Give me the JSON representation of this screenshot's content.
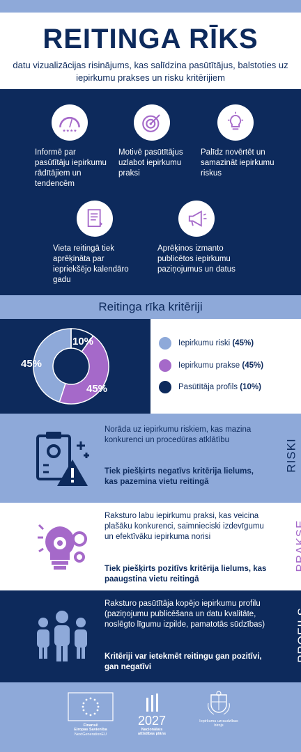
{
  "header": {
    "title": "REITINGA RĪKS",
    "subtitle": "datu vizualizācijas risinājums, kas salīdzina pasūtītājus, balstoties uz iepirkumu prakses un risku kritērijiem"
  },
  "features": [
    {
      "icon": "gauge-stars-icon",
      "text": "Informē par pasūtītāju iepirkumu rādītājiem un tendencēm"
    },
    {
      "icon": "target-arrow-icon",
      "text": "Motivē pasūtītājus uzlabot iepirkumu praksi"
    },
    {
      "icon": "lightbulb-icon",
      "text": "Palīdz novērtēt un samazināt iepirkumu riskus"
    },
    {
      "icon": "document-icon",
      "text": "Vieta reitingā tiek aprēķināta par iepriekšējo kalendāro gadu"
    },
    {
      "icon": "megaphone-icon",
      "text": "Aprēķinos izmanto publicētos iepirkumu paziņojumus un datus"
    }
  ],
  "criteria_title": "Reitinga rīka kritēriji",
  "chart_data": {
    "type": "pie",
    "categories": [
      "Iepirkumu riski",
      "Iepirkumu prakse",
      "Pasūtītāja profils"
    ],
    "values": [
      45,
      45,
      10
    ],
    "value_labels": [
      "45%",
      "45%",
      "10%"
    ],
    "colors": [
      "#8ea9d9",
      "#a569c9",
      "#0d2a5c"
    ],
    "legend": [
      {
        "name": "Iepirkumu riski",
        "value": "(45%)"
      },
      {
        "name": "Iepirkumu prakse",
        "value": "(45%)"
      },
      {
        "name": "Pasūtītāja profils",
        "value": "(10%)"
      }
    ]
  },
  "sections": [
    {
      "label": "RISKI",
      "text": "Norāda uz iepirkumu riskiem, kas mazina konkurenci un procedūras atklātību",
      "bold": "Tiek piešķirts negatīvs kritērija lielums, kas pazemina vietu reitingā",
      "bg": "#8ea9d9",
      "fg": "#0d2a5c",
      "icon": "clipboard-warning-icon"
    },
    {
      "label": "PRAKSE",
      "text": "Raksturo labu iepirkumu praksi, kas veicina plašāku konkurenci, saimnieciski izdevīgumu un efektīvāku iepirkuma norisi",
      "bold": "Tiek piešķirts pozitīvs kritērija lielums, kas paaugstina vietu reitingā",
      "bg": "#ffffff",
      "fg": "#0d2a5c",
      "icon": "bulb-gears-icon"
    },
    {
      "label": "PROFILS",
      "text": "Raksturo pasūtītāja kopējo iepirkumu profilu (paziņojumu publicēšana un datu kvalitāte, noslēgto līgumu izpilde, pamatotās sūdzības)",
      "bold": "Kritēriji var ietekmēt reitingu gan pozitīvi, gan negatīvi",
      "bg": "#0d2a5c",
      "fg": "#ffffff",
      "icon": "people-icon"
    }
  ],
  "footer": {
    "eu": [
      "Finansē",
      "Eiropas Savienība",
      "NextGenerationEU"
    ],
    "nap_year": "2027",
    "nap": [
      "Nacionālais",
      "attīstības plāns"
    ],
    "iub": [
      "Iepirkumu uzraudzības",
      "birojs"
    ]
  }
}
